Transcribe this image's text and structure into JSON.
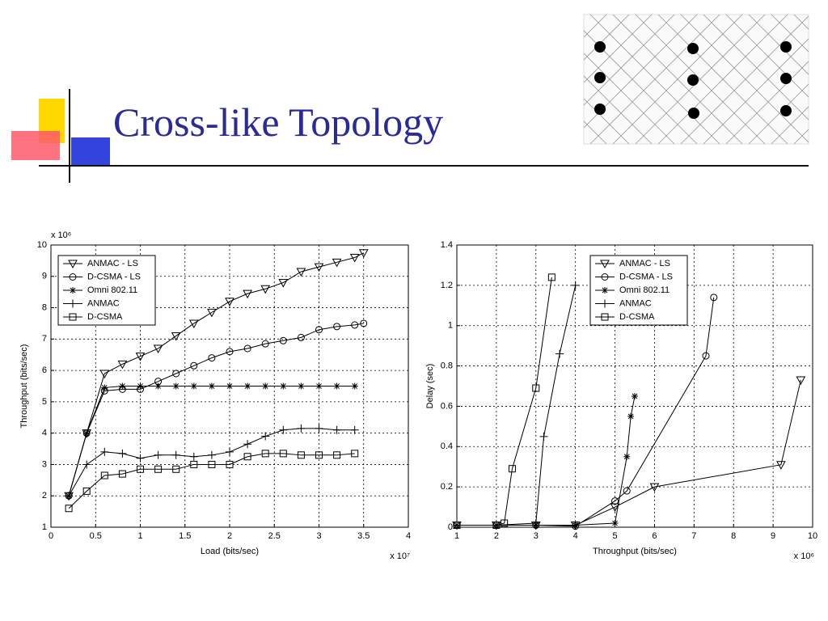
{
  "title": "Cross-like Topology",
  "chart_data": [
    {
      "type": "line",
      "xlabel": "Load (bits/sec)",
      "ylabel": "Throughput (bits/sec)",
      "x_scale_label": "x 10⁷",
      "y_scale_label": "x 10⁶",
      "xlim": [
        0,
        4
      ],
      "xticks": [
        0,
        0.5,
        1,
        1.5,
        2,
        2.5,
        3,
        3.5,
        4
      ],
      "ylim": [
        1,
        10
      ],
      "yticks": [
        1,
        2,
        3,
        4,
        5,
        6,
        7,
        8,
        9,
        10
      ],
      "grid": true,
      "legend": "upper left",
      "series": [
        {
          "name": "ANMAC - LS",
          "color": "#000000",
          "marker": "triangle-down",
          "x": [
            0.2,
            0.4,
            0.6,
            0.8,
            1.0,
            1.2,
            1.4,
            1.6,
            1.8,
            2.0,
            2.2,
            2.4,
            2.6,
            2.8,
            3.0,
            3.2,
            3.4,
            3.5
          ],
          "values": [
            2,
            4,
            5.9,
            6.2,
            6.45,
            6.7,
            7.1,
            7.5,
            7.85,
            8.2,
            8.45,
            8.6,
            8.8,
            9.15,
            9.3,
            9.45,
            9.6,
            9.75
          ]
        },
        {
          "name": "D-CSMA - LS",
          "color": "#000000",
          "marker": "circle",
          "x": [
            0.2,
            0.4,
            0.6,
            0.8,
            1.0,
            1.2,
            1.4,
            1.6,
            1.8,
            2.0,
            2.2,
            2.4,
            2.6,
            2.8,
            3.0,
            3.2,
            3.4,
            3.5
          ],
          "values": [
            2,
            4,
            5.35,
            5.4,
            5.4,
            5.65,
            5.9,
            6.15,
            6.4,
            6.6,
            6.7,
            6.85,
            6.95,
            7.05,
            7.3,
            7.4,
            7.45,
            7.5
          ]
        },
        {
          "name": "Omni 802.11",
          "color": "#000000",
          "marker": "star",
          "x": [
            0.2,
            0.4,
            0.6,
            0.8,
            1.0,
            1.2,
            1.4,
            1.6,
            1.8,
            2.0,
            2.2,
            2.4,
            2.6,
            2.8,
            3.0,
            3.2,
            3.4
          ],
          "values": [
            2,
            4,
            5.45,
            5.5,
            5.5,
            5.5,
            5.5,
            5.5,
            5.5,
            5.5,
            5.5,
            5.5,
            5.5,
            5.5,
            5.5,
            5.5,
            5.5
          ]
        },
        {
          "name": "ANMAC",
          "color": "#000000",
          "marker": "plus",
          "x": [
            0.2,
            0.4,
            0.6,
            0.8,
            1.0,
            1.2,
            1.4,
            1.6,
            1.8,
            2.0,
            2.2,
            2.4,
            2.6,
            2.8,
            3.0,
            3.2,
            3.4
          ],
          "values": [
            2,
            3,
            3.4,
            3.35,
            3.2,
            3.3,
            3.3,
            3.25,
            3.3,
            3.4,
            3.65,
            3.9,
            4.1,
            4.15,
            4.15,
            4.1,
            4.1
          ]
        },
        {
          "name": "D-CSMA",
          "color": "#000000",
          "marker": "square",
          "x": [
            0.2,
            0.4,
            0.6,
            0.8,
            1.0,
            1.2,
            1.4,
            1.6,
            1.8,
            2.0,
            2.2,
            2.4,
            2.6,
            2.8,
            3.0,
            3.2,
            3.4
          ],
          "values": [
            1.6,
            2.15,
            2.65,
            2.7,
            2.85,
            2.85,
            2.85,
            3.0,
            3.0,
            3.0,
            3.25,
            3.35,
            3.35,
            3.3,
            3.3,
            3.3,
            3.35
          ]
        }
      ]
    },
    {
      "type": "line",
      "xlabel": "Throughput (bits/sec)",
      "ylabel": "Delay (sec)",
      "x_scale_label": "x 10⁶",
      "xlim": [
        1,
        10
      ],
      "xticks": [
        1,
        2,
        3,
        4,
        5,
        6,
        7,
        8,
        9,
        10
      ],
      "ylim": [
        0,
        1.4
      ],
      "yticks": [
        0,
        0.2,
        0.4,
        0.6,
        0.8,
        1,
        1.2,
        1.4
      ],
      "grid": true,
      "legend": "upper center",
      "series": [
        {
          "name": "ANMAC - LS",
          "color": "#000000",
          "marker": "triangle-down",
          "x": [
            1,
            2,
            3,
            4,
            5,
            6,
            9.2,
            9.7
          ],
          "values": [
            0.01,
            0.01,
            0.01,
            0.01,
            0.1,
            0.2,
            0.31,
            0.73
          ]
        },
        {
          "name": "D-CSMA - LS",
          "color": "#000000",
          "marker": "circle",
          "x": [
            1,
            2,
            3,
            4,
            5,
            5.3,
            7.3,
            7.5
          ],
          "values": [
            0.01,
            0.01,
            0.01,
            0.005,
            0.13,
            0.18,
            0.85,
            1.14
          ]
        },
        {
          "name": "Omni 802.11",
          "color": "#000000",
          "marker": "star",
          "x": [
            1,
            2,
            3,
            4,
            5,
            5.3,
            5.4,
            5.5
          ],
          "values": [
            0.01,
            0.01,
            0.01,
            0.01,
            0.02,
            0.35,
            0.55,
            0.65
          ]
        },
        {
          "name": "ANMAC",
          "color": "#000000",
          "marker": "plus",
          "x": [
            1,
            2,
            3,
            3.2,
            3.6,
            4
          ],
          "values": [
            0.01,
            0.01,
            0.02,
            0.45,
            0.86,
            1.2
          ]
        },
        {
          "name": "D-CSMA",
          "color": "#000000",
          "marker": "square",
          "x": [
            1,
            2,
            2.2,
            2.4,
            3,
            3.4
          ],
          "values": [
            0.01,
            0.01,
            0.02,
            0.29,
            0.69,
            1.24
          ]
        }
      ]
    }
  ]
}
